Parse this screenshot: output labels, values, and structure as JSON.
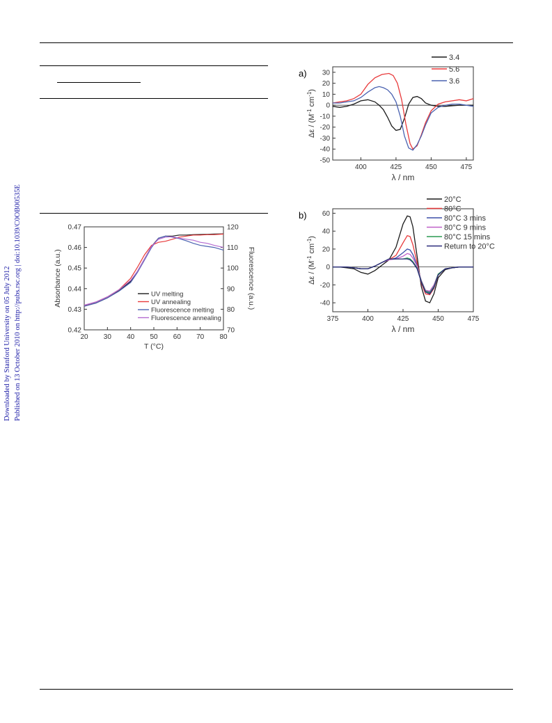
{
  "sidebar": {
    "line1": "Downloaded by Stanford University on 05 July 2012",
    "line2": "Published on 13 October 2010 on http://pubs.rsc.org | doi:10.1039/C0OB00535E",
    "color": "#1a1aa6"
  },
  "chart_data": [
    {
      "id": "thermal",
      "type": "line",
      "xlabel": "T (°C)",
      "ylabel": "Absorbance (a.u.)",
      "y2label": "Fluorescence (a.u.)",
      "xlim": [
        20,
        80
      ],
      "ylim": [
        0.42,
        0.47
      ],
      "y2lim": [
        70,
        120
      ],
      "xticks": [
        "20",
        "30",
        "40",
        "50",
        "60",
        "70",
        "80"
      ],
      "yticks": [
        "0.42",
        "0.43",
        "0.44",
        "0.45",
        "0.46",
        "0.47"
      ],
      "y2ticks": [
        "70",
        "80",
        "90",
        "100",
        "110",
        "120"
      ],
      "legend_position": "lower-right",
      "series": [
        {
          "name": "UV melting",
          "color": "#1a1a1a",
          "axis": "left",
          "x": [
            20,
            25,
            30,
            35,
            40,
            43,
            46,
            49,
            52,
            55,
            58,
            61,
            64,
            67,
            70,
            73,
            76,
            80
          ],
          "y": [
            0.4315,
            0.433,
            0.4355,
            0.439,
            0.4435,
            0.4485,
            0.4545,
            0.4605,
            0.4645,
            0.4655,
            0.4655,
            0.466,
            0.466,
            0.4662,
            0.4663,
            0.4664,
            0.4665,
            0.4666
          ]
        },
        {
          "name": "UV annealing",
          "color": "#e8393a",
          "axis": "left",
          "x": [
            20,
            25,
            30,
            35,
            40,
            43,
            46,
            49,
            52,
            55,
            58,
            61,
            64,
            67,
            70,
            73,
            76,
            80
          ],
          "y": [
            0.4318,
            0.4335,
            0.436,
            0.4395,
            0.445,
            0.4505,
            0.4565,
            0.461,
            0.4625,
            0.463,
            0.464,
            0.465,
            0.4655,
            0.466,
            0.466,
            0.4662,
            0.4662,
            0.4665
          ]
        },
        {
          "name": "Fluorescence melting",
          "color": "#4a62b0",
          "axis": "right",
          "x": [
            20,
            25,
            30,
            35,
            40,
            43,
            46,
            49,
            52,
            55,
            58,
            61,
            64,
            67,
            70,
            73,
            76,
            80
          ],
          "y": [
            81.5,
            83,
            85.5,
            88.8,
            93,
            98,
            104,
            110,
            114.5,
            115.5,
            115,
            114.3,
            113.2,
            112,
            111,
            110.5,
            110,
            108.7
          ]
        },
        {
          "name": "Fluorescence annealing",
          "color": "#b36ad0",
          "axis": "right",
          "x": [
            20,
            25,
            30,
            35,
            40,
            43,
            46,
            49,
            52,
            55,
            58,
            61,
            64,
            67,
            70,
            73,
            76,
            80
          ],
          "y": [
            82,
            83.5,
            86,
            89.5,
            94,
            98.5,
            104.5,
            110.5,
            114,
            115,
            115.2,
            114.5,
            114,
            113.5,
            112.5,
            112,
            111,
            110
          ]
        }
      ]
    },
    {
      "id": "cd_ph",
      "type": "line",
      "panel_label": "a)",
      "xlabel": "λ / nm",
      "ylabel_prefix": "Δε / (M",
      "ylabel_sup1": "-1",
      "ylabel_mid": " cm",
      "ylabel_sup2": "-1",
      "ylabel_suffix": ")",
      "xlim": [
        380,
        480
      ],
      "ylim": [
        -50,
        35
      ],
      "xticks": [
        "400",
        "425",
        "450",
        "475"
      ],
      "yticks": [
        "30",
        "20",
        "10",
        "0",
        "-10",
        "-20",
        "-30",
        "-40",
        "-50"
      ],
      "zero_line": true,
      "legend_position": "top-right",
      "series": [
        {
          "name": "3.4",
          "color": "#1a1a1a",
          "x": [
            380,
            385,
            390,
            395,
            400,
            405,
            410,
            413,
            416,
            419,
            422,
            425,
            428,
            431,
            434,
            437,
            440,
            443,
            446,
            450,
            455,
            460,
            465,
            470,
            475,
            480
          ],
          "y": [
            -1,
            -2,
            -1,
            1,
            4,
            5,
            3,
            0,
            -4,
            -11,
            -19,
            -23,
            -22,
            -12,
            1,
            7,
            8,
            6,
            2,
            0,
            -1,
            -1,
            -0.5,
            0,
            0,
            0
          ]
        },
        {
          "name": "5.6",
          "color": "#e8393a",
          "x": [
            380,
            385,
            390,
            395,
            400,
            405,
            410,
            415,
            420,
            423,
            426,
            429,
            432,
            435,
            437,
            440,
            443,
            446,
            450,
            455,
            460,
            465,
            470,
            475,
            480
          ],
          "y": [
            2,
            3,
            4,
            6,
            10,
            19,
            25,
            28,
            29,
            27,
            20,
            5,
            -17,
            -35,
            -40,
            -37,
            -27,
            -16,
            -5,
            1,
            3,
            4,
            5,
            4,
            6
          ]
        },
        {
          "name": "3.6",
          "color": "#4a62b0",
          "x": [
            380,
            385,
            390,
            395,
            400,
            405,
            410,
            413,
            416,
            419,
            422,
            425,
            428,
            431,
            434,
            437,
            440,
            443,
            446,
            450,
            455,
            460,
            465,
            470,
            475,
            480
          ],
          "y": [
            2,
            2,
            3,
            4,
            7,
            12,
            16,
            17,
            16,
            14,
            10,
            3,
            -10,
            -28,
            -39,
            -41,
            -36,
            -28,
            -18,
            -7,
            -2,
            0,
            1,
            1,
            0,
            -1
          ]
        }
      ]
    },
    {
      "id": "cd_temp",
      "type": "line",
      "panel_label": "b)",
      "xlabel": "λ / nm",
      "ylabel_prefix": "Δε / (M",
      "ylabel_sup1": "-1",
      "ylabel_mid": " cm",
      "ylabel_sup2": "-1",
      "ylabel_suffix": ")",
      "xlim": [
        375,
        475
      ],
      "ylim": [
        -50,
        65
      ],
      "xticks": [
        "375",
        "400",
        "425",
        "450",
        "475"
      ],
      "yticks": [
        "60",
        "40",
        "20",
        "0",
        "-20",
        "-40"
      ],
      "zero_line": true,
      "legend_position": "top-right",
      "series": [
        {
          "name": "20°C",
          "color": "#1a1a1a",
          "x": [
            375,
            380,
            385,
            390,
            395,
            400,
            405,
            410,
            415,
            420,
            425,
            428,
            430,
            432,
            435,
            438,
            441,
            444,
            447,
            450,
            455,
            460,
            465,
            470,
            475
          ],
          "y": [
            0,
            0,
            -1,
            -2,
            -6,
            -8,
            -4,
            2,
            8,
            22,
            48,
            57,
            56,
            45,
            12,
            -22,
            -38,
            -40,
            -30,
            -12,
            -3,
            -1,
            0,
            0,
            0
          ]
        },
        {
          "name": "80°C",
          "color": "#e8393a",
          "x": [
            375,
            380,
            385,
            390,
            395,
            400,
            405,
            410,
            415,
            420,
            425,
            428,
            430,
            432,
            435,
            438,
            441,
            444,
            447,
            450,
            455,
            460,
            465,
            470,
            475
          ],
          "y": [
            0,
            0,
            0,
            -1,
            -2,
            -2,
            1,
            5,
            8,
            13,
            27,
            35,
            34,
            25,
            5,
            -18,
            -30,
            -31,
            -24,
            -9,
            -2,
            -1,
            0,
            0,
            0
          ]
        },
        {
          "name": "80°C 3 mins",
          "color": "#3b4fa8",
          "x": [
            375,
            380,
            385,
            390,
            395,
            400,
            405,
            410,
            415,
            420,
            425,
            428,
            430,
            432,
            435,
            438,
            441,
            444,
            447,
            450,
            455,
            460,
            465,
            470,
            475
          ],
          "y": [
            0,
            0,
            0,
            -1,
            -2,
            -2,
            1,
            5,
            8,
            10,
            16,
            20,
            19,
            14,
            2,
            -16,
            -27,
            -28,
            -21,
            -8,
            -2,
            -1,
            0,
            0,
            0
          ]
        },
        {
          "name": "80°C 9 mins",
          "color": "#c060c8",
          "x": [
            375,
            380,
            385,
            390,
            395,
            400,
            405,
            410,
            415,
            420,
            425,
            428,
            430,
            432,
            435,
            438,
            441,
            444,
            447,
            450,
            455,
            460,
            465,
            470,
            475
          ],
          "y": [
            0,
            0,
            0,
            -1,
            -2,
            -2,
            1,
            5,
            8,
            9,
            12,
            15,
            14,
            10,
            1,
            -15,
            -26,
            -27,
            -20,
            -8,
            -2,
            -1,
            0,
            0,
            0
          ]
        },
        {
          "name": "80°C 15 mins",
          "color": "#2a9a52",
          "x": [
            375,
            380,
            385,
            390,
            395,
            400,
            405,
            410,
            415,
            420,
            425,
            428,
            430,
            432,
            435,
            438,
            441,
            444,
            447,
            450,
            455,
            460,
            465,
            470,
            475
          ],
          "y": [
            0,
            0,
            0,
            -1,
            -2,
            -2,
            1,
            5,
            9,
            9,
            9,
            10,
            9,
            6,
            -1,
            -16,
            -27,
            -29,
            -22,
            -8,
            -2,
            -1,
            0,
            0,
            0
          ]
        },
        {
          "name": "Return to 20°C",
          "color": "#2a2a7a",
          "x": [
            375,
            380,
            385,
            390,
            395,
            400,
            405,
            410,
            415,
            420,
            425,
            428,
            430,
            432,
            435,
            438,
            441,
            444,
            447,
            450,
            455,
            460,
            465,
            470,
            475
          ],
          "y": [
            0,
            0,
            0,
            -1,
            -2,
            -2,
            1,
            5,
            9,
            9,
            9,
            9,
            8,
            5,
            -2,
            -17,
            -28,
            -30,
            -23,
            -9,
            -2,
            -1,
            0,
            0,
            0
          ]
        }
      ]
    }
  ]
}
